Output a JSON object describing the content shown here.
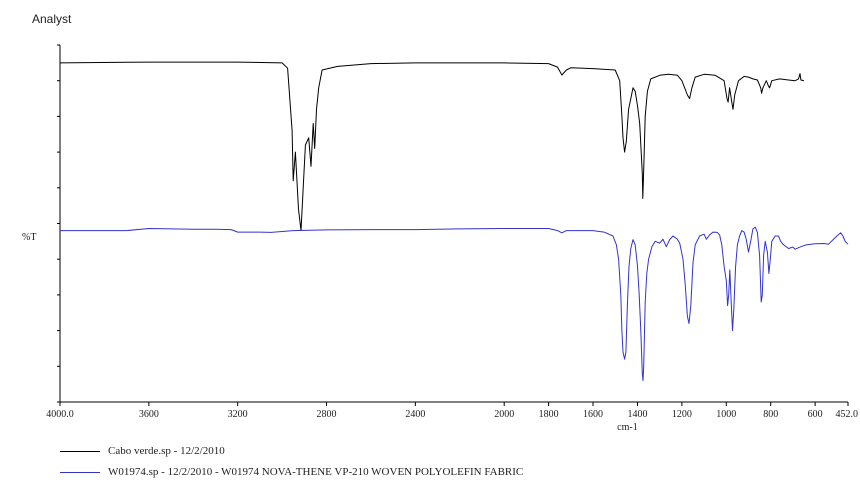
{
  "header": {
    "label": "Analyst"
  },
  "chart_data": {
    "type": "line",
    "title": "",
    "xlabel": "cm-1",
    "ylabel": "%T",
    "xlim": [
      4000.0,
      452.0
    ],
    "x_reversed": true,
    "x_ticks": [
      {
        "value": 4000,
        "label": "4000.0"
      },
      {
        "value": 3600,
        "label": "3600"
      },
      {
        "value": 3200,
        "label": "3200"
      },
      {
        "value": 2800,
        "label": "2800"
      },
      {
        "value": 2400,
        "label": "2400"
      },
      {
        "value": 2000,
        "label": "2000"
      },
      {
        "value": 1800,
        "label": "1800"
      },
      {
        "value": 1600,
        "label": "1600"
      },
      {
        "value": 1400,
        "label": "1400"
      },
      {
        "value": 1200,
        "label": "1200"
      },
      {
        "value": 1000,
        "label": "1000"
      },
      {
        "value": 800,
        "label": "800"
      },
      {
        "value": 600,
        "label": "600"
      },
      {
        "value": 452,
        "label": "452.0"
      }
    ],
    "ylim": [
      0,
      100
    ],
    "y_tick_labels": "none",
    "grid": false,
    "legend_position": "bottom",
    "series": [
      {
        "name": "Cabo verde.sp - 12/2/2010",
        "color": "#000000",
        "points": [
          [
            4000,
            95.0
          ],
          [
            3600,
            95.2
          ],
          [
            3200,
            95.2
          ],
          [
            3000,
            95.0
          ],
          [
            2975,
            93.5
          ],
          [
            2955,
            76
          ],
          [
            2950,
            62
          ],
          [
            2940,
            70
          ],
          [
            2926,
            54
          ],
          [
            2915,
            48
          ],
          [
            2905,
            60
          ],
          [
            2895,
            72
          ],
          [
            2880,
            74
          ],
          [
            2870,
            66
          ],
          [
            2860,
            78
          ],
          [
            2853,
            71
          ],
          [
            2845,
            82
          ],
          [
            2835,
            88
          ],
          [
            2820,
            93
          ],
          [
            2750,
            94.0
          ],
          [
            2600,
            94.8
          ],
          [
            2400,
            95.0
          ],
          [
            2200,
            95.0
          ],
          [
            2000,
            95.0
          ],
          [
            1800,
            94.8
          ],
          [
            1760,
            93.8
          ],
          [
            1740,
            91.6
          ],
          [
            1720,
            93.0
          ],
          [
            1700,
            93.6
          ],
          [
            1600,
            93.4
          ],
          [
            1500,
            93.0
          ],
          [
            1480,
            90
          ],
          [
            1470,
            80
          ],
          [
            1465,
            74
          ],
          [
            1458,
            70
          ],
          [
            1450,
            73
          ],
          [
            1440,
            82
          ],
          [
            1430,
            85
          ],
          [
            1420,
            88
          ],
          [
            1410,
            87
          ],
          [
            1400,
            83
          ],
          [
            1390,
            78
          ],
          [
            1378,
            64
          ],
          [
            1376,
            57
          ],
          [
            1372,
            65
          ],
          [
            1365,
            80
          ],
          [
            1355,
            87
          ],
          [
            1340,
            90.5
          ],
          [
            1300,
            91.5
          ],
          [
            1260,
            91.8
          ],
          [
            1220,
            91.5
          ],
          [
            1200,
            90
          ],
          [
            1175,
            86
          ],
          [
            1165,
            85
          ],
          [
            1155,
            88
          ],
          [
            1140,
            91
          ],
          [
            1100,
            91.8
          ],
          [
            1050,
            91.5
          ],
          [
            1010,
            90
          ],
          [
            997,
            85
          ],
          [
            992,
            84
          ],
          [
            985,
            88
          ],
          [
            975,
            84
          ],
          [
            970,
            82
          ],
          [
            962,
            86
          ],
          [
            945,
            90
          ],
          [
            920,
            91.2
          ],
          [
            900,
            91
          ],
          [
            880,
            90.5
          ],
          [
            860,
            90.2
          ],
          [
            845,
            88
          ],
          [
            841,
            86.5
          ],
          [
            835,
            88
          ],
          [
            820,
            90
          ],
          [
            810,
            88.5
          ],
          [
            805,
            88
          ],
          [
            795,
            90
          ],
          [
            760,
            90.5
          ],
          [
            720,
            90.2
          ],
          [
            690,
            90
          ],
          [
            675,
            90.5
          ],
          [
            668,
            92
          ],
          [
            664,
            90.2
          ],
          [
            650,
            90
          ]
        ]
      },
      {
        "name": "W01974.sp - 12/2/2010 - W01974 NOVA-THENE VP-210 WOVEN POLYOLEFIN FABRIC",
        "color": "#3333cc",
        "points": [
          [
            4000,
            48.0
          ],
          [
            3700,
            48.0
          ],
          [
            3600,
            48.6
          ],
          [
            3400,
            48.4
          ],
          [
            3300,
            48.4
          ],
          [
            3230,
            48.3
          ],
          [
            3200,
            47.6
          ],
          [
            3100,
            47.6
          ],
          [
            3050,
            47.5
          ],
          [
            2950,
            48.0
          ],
          [
            2800,
            48.2
          ],
          [
            2600,
            48.3
          ],
          [
            2400,
            48.3
          ],
          [
            2200,
            48.5
          ],
          [
            2000,
            48.6
          ],
          [
            1800,
            48.6
          ],
          [
            1760,
            48.0
          ],
          [
            1740,
            47.4
          ],
          [
            1720,
            48.0
          ],
          [
            1600,
            48.0
          ],
          [
            1550,
            47.6
          ],
          [
            1510,
            46.5
          ],
          [
            1495,
            44
          ],
          [
            1485,
            40
          ],
          [
            1475,
            30
          ],
          [
            1470,
            20
          ],
          [
            1465,
            14
          ],
          [
            1458,
            12
          ],
          [
            1452,
            14
          ],
          [
            1445,
            28
          ],
          [
            1438,
            38
          ],
          [
            1430,
            43
          ],
          [
            1420,
            45.5
          ],
          [
            1410,
            44
          ],
          [
            1400,
            38
          ],
          [
            1392,
            30
          ],
          [
            1385,
            20
          ],
          [
            1378,
            8
          ],
          [
            1375,
            6
          ],
          [
            1372,
            10
          ],
          [
            1365,
            28
          ],
          [
            1358,
            36
          ],
          [
            1350,
            40
          ],
          [
            1335,
            43.5
          ],
          [
            1320,
            45
          ],
          [
            1300,
            44.5
          ],
          [
            1285,
            45.6
          ],
          [
            1270,
            43.5
          ],
          [
            1255,
            45.5
          ],
          [
            1240,
            46.5
          ],
          [
            1220,
            45.6
          ],
          [
            1210,
            44.5
          ],
          [
            1195,
            40
          ],
          [
            1185,
            33
          ],
          [
            1175,
            24
          ],
          [
            1168,
            22
          ],
          [
            1160,
            27
          ],
          [
            1150,
            39
          ],
          [
            1140,
            44
          ],
          [
            1120,
            46.5
          ],
          [
            1100,
            47.0
          ],
          [
            1090,
            45.6
          ],
          [
            1075,
            46.8
          ],
          [
            1060,
            47.6
          ],
          [
            1040,
            47.5
          ],
          [
            1030,
            46.8
          ],
          [
            1020,
            44
          ],
          [
            1010,
            38
          ],
          [
            1000,
            34
          ],
          [
            994,
            27
          ],
          [
            989,
            30
          ],
          [
            984,
            37
          ],
          [
            978,
            28
          ],
          [
            972,
            20
          ],
          [
            966,
            26
          ],
          [
            958,
            38
          ],
          [
            950,
            44
          ],
          [
            940,
            46.5
          ],
          [
            930,
            48
          ],
          [
            920,
            47.6
          ],
          [
            910,
            45.5
          ],
          [
            900,
            42
          ],
          [
            890,
            45
          ],
          [
            880,
            48.5
          ],
          [
            870,
            49
          ],
          [
            860,
            47.5
          ],
          [
            850,
            41
          ],
          [
            843,
            28
          ],
          [
            838,
            30
          ],
          [
            832,
            41
          ],
          [
            825,
            45
          ],
          [
            815,
            42
          ],
          [
            808,
            36
          ],
          [
            802,
            40
          ],
          [
            795,
            45
          ],
          [
            780,
            46.5
          ],
          [
            765,
            46.5
          ],
          [
            755,
            45
          ],
          [
            745,
            44.2
          ],
          [
            720,
            43.0
          ],
          [
            700,
            43.4
          ],
          [
            690,
            42.8
          ],
          [
            660,
            43.6
          ],
          [
            640,
            44
          ],
          [
            600,
            44.3
          ],
          [
            560,
            44.4
          ],
          [
            540,
            44.2
          ],
          [
            520,
            45.4
          ],
          [
            500,
            46.6
          ],
          [
            485,
            47.4
          ],
          [
            475,
            46.5
          ],
          [
            465,
            45.0
          ],
          [
            452,
            44.2
          ]
        ]
      }
    ]
  },
  "legend": [
    {
      "label": "Cabo verde.sp - 12/2/2010",
      "color": "#000000"
    },
    {
      "label": "W01974.sp - 12/2/2010 - W01974 NOVA-THENE VP-210 WOVEN POLYOLEFIN FABRIC",
      "color": "#3333cc"
    }
  ]
}
